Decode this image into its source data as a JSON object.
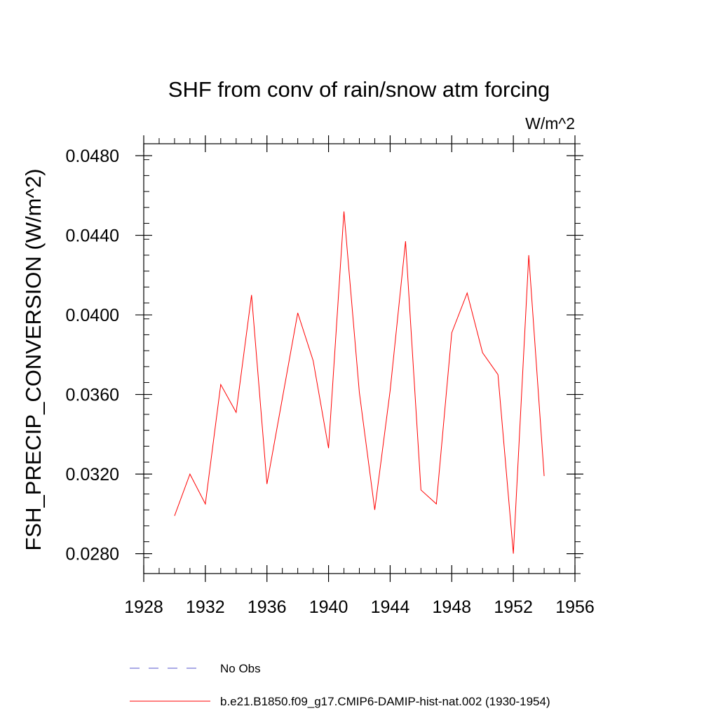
{
  "chart_data": {
    "type": "line",
    "title": "SHF from conv of rain/snow atm forcing",
    "units_label": "W/m^2",
    "ylabel": "FSH_PRECIP_CONVERSION  (W/m^2)",
    "xlabel": "",
    "xlim": [
      1928,
      1956
    ],
    "ylim": [
      0.027,
      0.0486
    ],
    "x_ticks": [
      1928,
      1932,
      1936,
      1940,
      1944,
      1948,
      1952,
      1956
    ],
    "x_tick_labels": [
      "1928",
      "1932",
      "1936",
      "1940",
      "1944",
      "1948",
      "1952",
      "1956"
    ],
    "y_ticks": [
      0.028,
      0.032,
      0.036,
      0.04,
      0.044,
      0.048
    ],
    "y_tick_labels": [
      "0.0280",
      "0.0320",
      "0.0360",
      "0.0400",
      "0.0440",
      "0.0480"
    ],
    "grid": false,
    "series": [
      {
        "name": "b.e21.B1850.f09_g17.CMIP6-DAMIP-hist-nat.002 (1930-1954)",
        "color": "#ff0000",
        "dash": "solid",
        "x": [
          1930,
          1931,
          1932,
          1933,
          1934,
          1935,
          1936,
          1937,
          1938,
          1939,
          1940,
          1941,
          1942,
          1943,
          1944,
          1945,
          1946,
          1947,
          1948,
          1949,
          1950,
          1951,
          1952,
          1953,
          1954
        ],
        "y": [
          0.0299,
          0.032,
          0.0305,
          0.0365,
          0.0351,
          0.041,
          0.0315,
          0.0358,
          0.0401,
          0.0377,
          0.0333,
          0.0452,
          0.0361,
          0.0302,
          0.0362,
          0.0437,
          0.0312,
          0.0305,
          0.0391,
          0.0411,
          0.0381,
          0.037,
          0.028,
          0.043,
          0.0319
        ]
      }
    ],
    "legend": {
      "placement": "bottom",
      "entries": [
        {
          "label": "No Obs",
          "color": "#5555cc",
          "dash": "dashed"
        },
        {
          "label": "b.e21.B1850.f09_g17.CMIP6-DAMIP-hist-nat.002 (1930-1954)",
          "color": "#ff0000",
          "dash": "solid"
        }
      ]
    }
  }
}
